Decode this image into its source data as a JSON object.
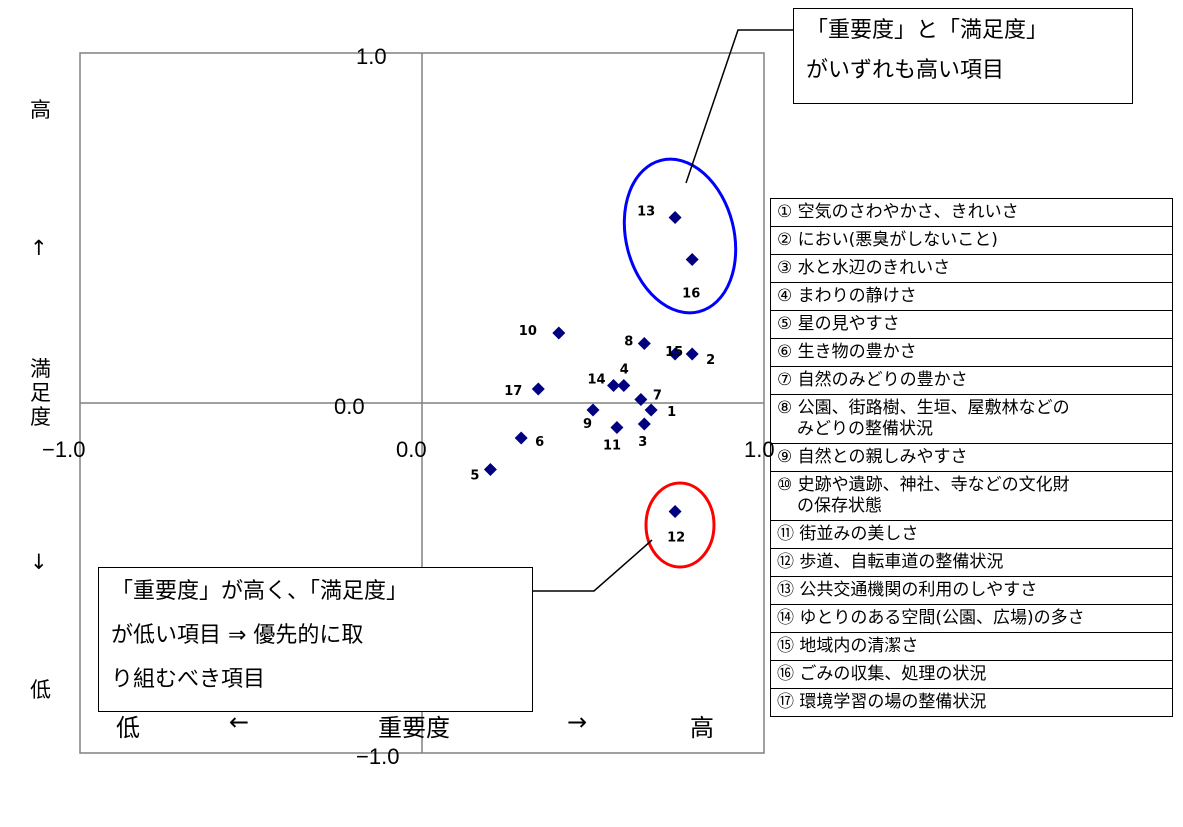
{
  "chart_data": {
    "type": "scatter",
    "xlim": [
      -1.0,
      1.0
    ],
    "ylim": [
      -1.0,
      1.0
    ],
    "x_ticks": [
      "−1.0",
      "0.0",
      "1.0"
    ],
    "y_ticks": [
      "1.0",
      "0.0",
      "−1.0"
    ],
    "ylabel": [
      "高",
      "↑",
      "満足度",
      "↓",
      "低"
    ],
    "xlabel": [
      "低",
      "←",
      "重要度",
      "→",
      "高"
    ],
    "points": [
      {
        "label": "1",
        "x": 0.67,
        "y": -0.02
      },
      {
        "label": "2",
        "x": 0.79,
        "y": 0.14
      },
      {
        "label": "3",
        "x": 0.65,
        "y": -0.06
      },
      {
        "label": "4",
        "x": 0.59,
        "y": 0.05
      },
      {
        "label": "5",
        "x": 0.2,
        "y": -0.19
      },
      {
        "label": "6",
        "x": 0.29,
        "y": -0.1
      },
      {
        "label": "7",
        "x": 0.64,
        "y": 0.01
      },
      {
        "label": "8",
        "x": 0.65,
        "y": 0.17
      },
      {
        "label": "9",
        "x": 0.5,
        "y": -0.02
      },
      {
        "label": "10",
        "x": 0.4,
        "y": 0.2
      },
      {
        "label": "11",
        "x": 0.57,
        "y": -0.07
      },
      {
        "label": "12",
        "x": 0.74,
        "y": -0.31
      },
      {
        "label": "13",
        "x": 0.74,
        "y": 0.53
      },
      {
        "label": "14",
        "x": 0.56,
        "y": 0.05
      },
      {
        "label": "15",
        "x": 0.74,
        "y": 0.14
      },
      {
        "label": "16",
        "x": 0.79,
        "y": 0.41
      },
      {
        "label": "17",
        "x": 0.34,
        "y": 0.04
      }
    ],
    "marker_color": "#000080",
    "highlight_high_color": "#0000ff",
    "highlight_priority_color": "#ff0000",
    "legend": [
      "① 空気のさわやかさ、きれいさ",
      "② におい(悪臭がしないこと)",
      "③ 水と水辺のきれいさ",
      "④ まわりの静けさ",
      "⑤ 星の見やすさ",
      "⑥ 生き物の豊かさ",
      "⑦ 自然のみどりの豊かさ",
      "⑧ 公園、街路樹、生垣、屋敷林などの\nみどりの整備状況",
      "⑨ 自然との親しみやすさ",
      "⑩ 史跡や遺跡、神社、寺などの文化財\nの保存状態",
      "⑪ 街並みの美しさ",
      "⑫ 歩道、自転車道の整備状況",
      "⑬ 公共交通機関の利用のしやすさ",
      "⑭ ゆとりのある空間(公園、広場)の多さ",
      "⑮ 地域内の清潔さ",
      "⑯ ごみの収集、処理の状況",
      "⑰ 環境学習の場の整備状況"
    ]
  },
  "callouts": {
    "top": [
      "「重要度」と「満足度」",
      "がいずれも高い項目"
    ],
    "bottom": [
      "「重要度」が高く、「満足度」",
      "が低い項目 ⇒ 優先的に取",
      "り組むべき項目"
    ]
  }
}
